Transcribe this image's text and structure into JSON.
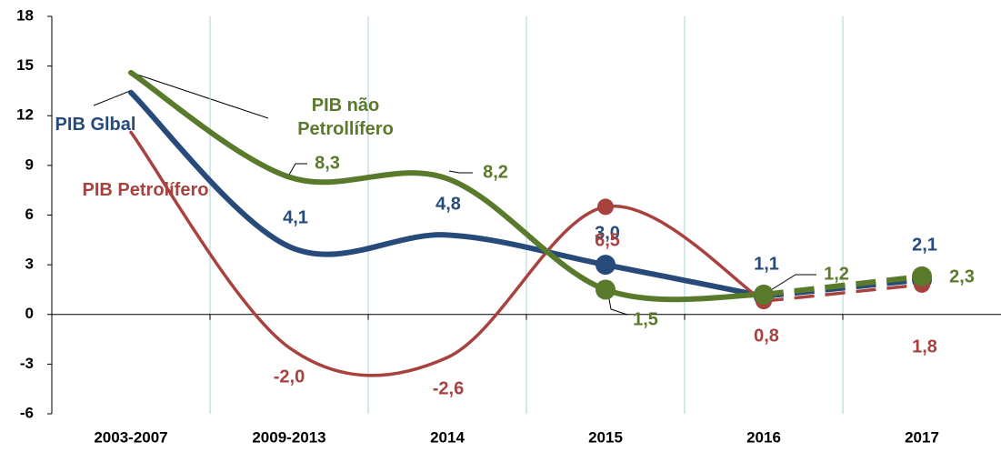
{
  "chart_data": {
    "type": "line",
    "categories": [
      "2003-2007",
      "2009-2013",
      "2014",
      "2015",
      "2016",
      "2017"
    ],
    "series": [
      {
        "name": "PIB Glbal",
        "color": "#264a7a",
        "values": [
          13.4,
          4.1,
          4.8,
          3.0,
          1.1,
          2.1
        ],
        "value_labels": [
          null,
          "4,1",
          "4,8",
          "3,0",
          "1,1",
          "2,1"
        ]
      },
      {
        "name": "PIB Petrolífero",
        "color": "#a8423f",
        "values": [
          11.0,
          -2.0,
          -2.6,
          6.5,
          0.8,
          1.8
        ],
        "value_labels": [
          null,
          "-2,0",
          "-2,6",
          "6,5",
          "0,8",
          "1,8"
        ]
      },
      {
        "name": "PIB não Petrollífero",
        "color": "#5a7a2b",
        "values": [
          14.6,
          8.3,
          8.2,
          1.5,
          1.2,
          2.3
        ],
        "value_labels": [
          null,
          "8,3",
          "8,2",
          "1,5",
          "1,2",
          "2,3"
        ]
      }
    ],
    "ylim": [
      -6,
      18
    ],
    "yticks": [
      -6,
      -3,
      0,
      3,
      6,
      9,
      12,
      15,
      18
    ],
    "grid": true
  }
}
